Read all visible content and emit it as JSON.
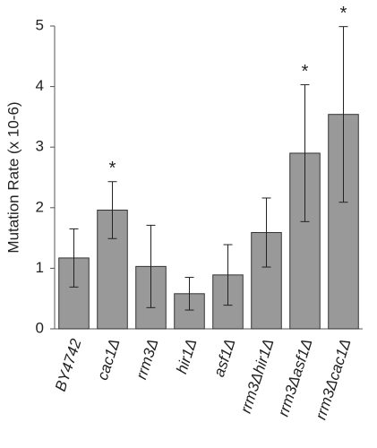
{
  "chart_data": {
    "type": "bar",
    "y_label": "Mutation Rate (x 10-6)",
    "categories": [
      "BY4742",
      "cac1Δ",
      "rrm3Δ",
      "hir1Δ",
      "asf1Δ",
      "rrm3Δhir1Δ",
      "rrm3Δasf1Δ",
      "rrm3Δcac1Δ"
    ],
    "values": [
      1.17,
      1.96,
      1.03,
      0.58,
      0.89,
      1.59,
      2.9,
      3.54
    ],
    "errors": [
      0.48,
      0.47,
      0.68,
      0.27,
      0.5,
      0.57,
      1.13,
      1.45
    ],
    "value_annotations": [
      null,
      "*",
      null,
      null,
      null,
      null,
      "*",
      "*"
    ],
    "color": "#999999",
    "ylim": [
      0,
      5
    ],
    "yticks": [
      0,
      1,
      2,
      3,
      4,
      5
    ],
    "grid": false
  }
}
